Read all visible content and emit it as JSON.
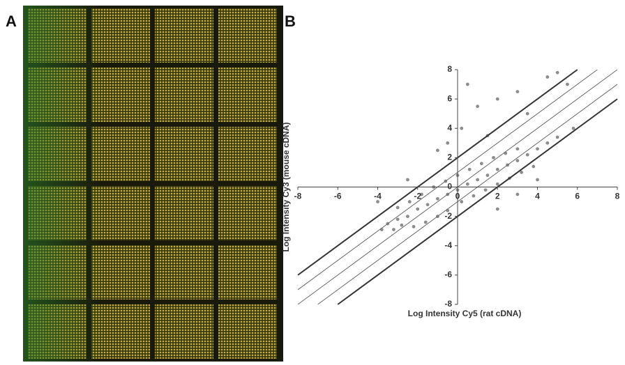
{
  "panel_labels": [
    "A",
    "B"
  ],
  "chart_data": {
    "type": "scatter",
    "x_label": "Log Intensity Cy5 (rat cDNA)",
    "y_label": "Log Intensity Cy3 (mouse cDNA)",
    "xlim": [
      -8,
      8
    ],
    "ylim": [
      -8,
      8
    ],
    "xticks": [
      -8,
      -6,
      -4,
      -2,
      0,
      2,
      4,
      6,
      8
    ],
    "yticks": [
      -8,
      -6,
      -4,
      -2,
      0,
      2,
      4,
      6,
      8
    ],
    "color": "#8c8c8c",
    "reference_lines": [
      {
        "intercept": 2,
        "thick": true
      },
      {
        "intercept": 1,
        "thick": false
      },
      {
        "intercept": 0,
        "thick": false
      },
      {
        "intercept": -1,
        "thick": false
      },
      {
        "intercept": -2,
        "thick": true
      }
    ],
    "x": [
      -3.5,
      -3,
      -2.5,
      -2,
      -1.5,
      -1,
      -0.5,
      0,
      0.5,
      1,
      1.5,
      2,
      2.5,
      3,
      3.5,
      4,
      4.5,
      5,
      -3.8,
      -3.2,
      -2.8,
      -2.2,
      -1.6,
      -1,
      -0.5,
      0.2,
      0.8,
      1.4,
      2,
      2.6,
      3.2,
      3.8,
      -3,
      -2.4,
      -1.8,
      -1.2,
      -0.6,
      0,
      0.6,
      1.2,
      1.8,
      2.4,
      3,
      -0.5,
      0.2,
      1,
      0.5,
      2,
      3,
      4.5,
      5,
      5.5,
      -1,
      -2.5,
      -4,
      2,
      3,
      4,
      5.8,
      1.5,
      3.5
    ],
    "y": [
      -2.5,
      -2.2,
      -2,
      -1.5,
      -1.2,
      -0.8,
      -0.5,
      -0.2,
      0.2,
      0.5,
      0.8,
      1.2,
      1.5,
      1.8,
      2.2,
      2.6,
      3,
      3.4,
      -2.9,
      -2.9,
      -2.6,
      -2.7,
      -2.4,
      -2,
      -1.6,
      -1,
      -0.6,
      -0.2,
      0.2,
      0.6,
      1,
      1.4,
      -1.4,
      -1,
      -0.5,
      0,
      0.4,
      0.8,
      1.2,
      1.6,
      2,
      2.3,
      2.6,
      3,
      4,
      5.5,
      7,
      6,
      6.5,
      7.5,
      7.8,
      7,
      2.5,
      0.5,
      -1,
      -1.5,
      -0.5,
      0.5,
      4,
      3.5,
      5
    ]
  }
}
